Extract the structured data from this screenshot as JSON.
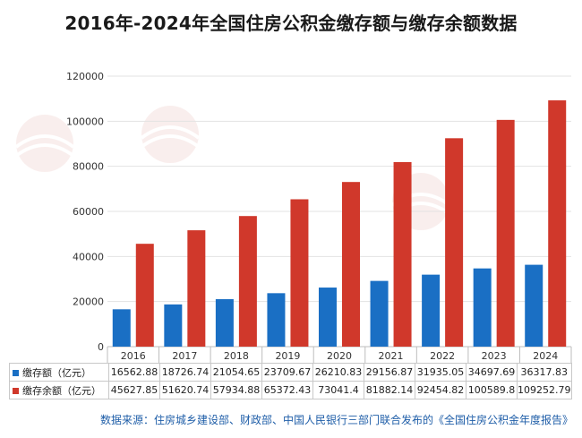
{
  "title": "2016年-2024年全国住房公积金缴存额与缴存余额数据",
  "source": "数据来源：住房城乡建设部、财政部、中国人民银行三部门联合发布的《全国住房公积金年度报告》",
  "colors": {
    "series1": "#1a6fc4",
    "series2": "#d0382b",
    "grid": "#e3e3e3",
    "axis": "#bdbdbd"
  },
  "chart_data": {
    "type": "bar",
    "categories": [
      "2016",
      "2017",
      "2018",
      "2019",
      "2020",
      "2021",
      "2022",
      "2023",
      "2024"
    ],
    "series": [
      {
        "name": "缴存额（亿元）",
        "values": [
          16562.88,
          18726.74,
          21054.65,
          23709.67,
          26210.83,
          29156.87,
          31935.05,
          34697.69,
          36317.83
        ]
      },
      {
        "name": "缴存余额（亿元）",
        "values": [
          45627.85,
          51620.74,
          57934.88,
          65372.43,
          73041.4,
          81882.14,
          92454.82,
          100589.8,
          109252.79
        ]
      }
    ],
    "ylim": [
      0,
      120000
    ],
    "yticks": [
      0,
      20000,
      40000,
      60000,
      80000,
      100000,
      120000
    ],
    "grid": true,
    "legend": "data-table"
  },
  "table": {
    "rows": [
      {
        "label": "缴存额（亿元）",
        "values": [
          "16562.88",
          "18726.74",
          "21054.65",
          "23709.67",
          "26210.83",
          "29156.87",
          "31935.05",
          "34697.69",
          "36317.83"
        ]
      },
      {
        "label": "缴存余额（亿元）",
        "values": [
          "45627.85",
          "51620.74",
          "57934.88",
          "65372.43",
          "73041.4",
          "81882.14",
          "92454.82",
          "100589.8",
          "109252.79"
        ]
      }
    ]
  }
}
